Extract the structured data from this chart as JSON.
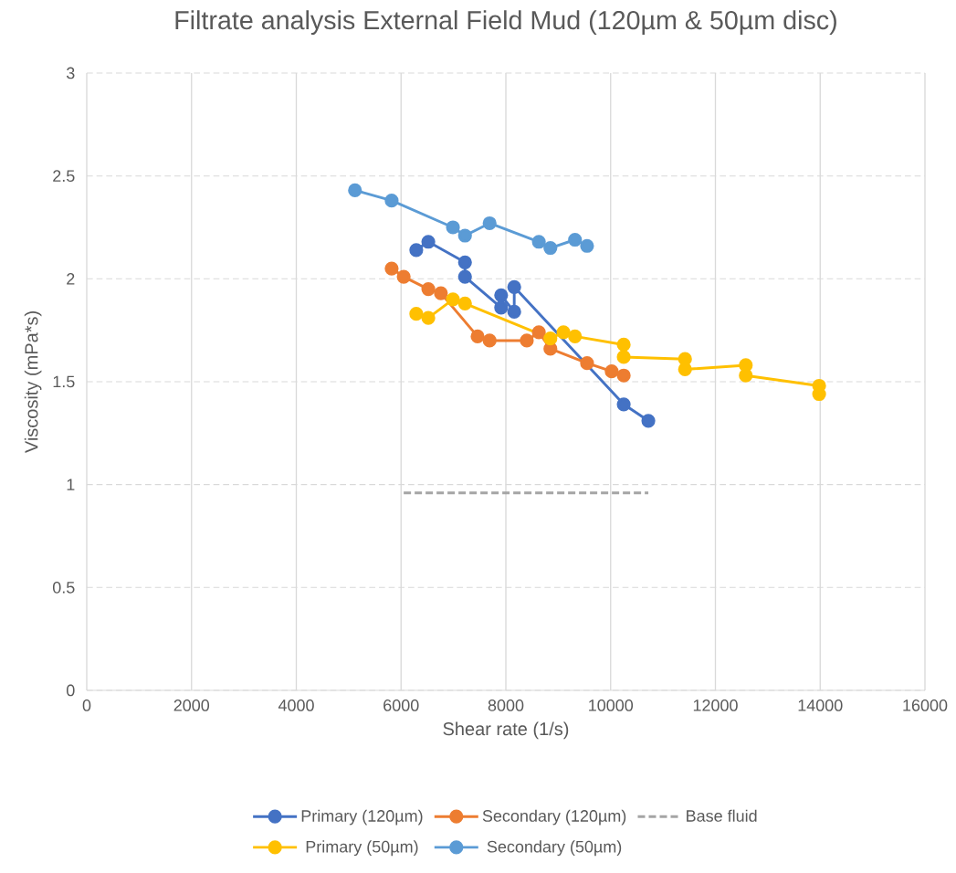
{
  "chart_data": {
    "type": "line",
    "title": "Filtrate analysis External Field Mud (120µm & 50µm disc)",
    "xlabel": "Shear rate (1/s)",
    "ylabel": "Viscosity (mPa*s)",
    "xlim": [
      0,
      16000
    ],
    "xticks": [
      0,
      2000,
      4000,
      6000,
      8000,
      10000,
      12000,
      14000,
      16000
    ],
    "ylim": [
      0,
      3
    ],
    "yticks": [
      0,
      0.5,
      1,
      1.5,
      2,
      2.5,
      3
    ],
    "grid": true,
    "legend": "bottom",
    "marker": "circle",
    "line_style": "solid",
    "series": [
      {
        "name": "Primary (120µm)",
        "color": "#4472c4",
        "x": [
          6290,
          6520,
          7220,
          7220,
          7910,
          7910,
          8160,
          8160,
          10250,
          10720
        ],
        "values": [
          2.14,
          2.18,
          2.08,
          2.01,
          1.86,
          1.92,
          1.84,
          1.96,
          1.39,
          1.31
        ]
      },
      {
        "name": "Secondary (120µm)",
        "color": "#ed7d31",
        "x": [
          5820,
          6050,
          6520,
          6760,
          7460,
          7690,
          8400,
          8630,
          8850,
          9550,
          10020,
          10250
        ],
        "values": [
          2.05,
          2.01,
          1.95,
          1.93,
          1.72,
          1.7,
          1.7,
          1.74,
          1.66,
          1.59,
          1.55,
          1.53
        ]
      },
      {
        "name": "Base fluid",
        "color": "#a5a5a5",
        "marker": "none",
        "line_style": "dashed",
        "x": [
          6050,
          10720
        ],
        "values": [
          0.96,
          0.96
        ]
      },
      {
        "name": "Primary (50µm)",
        "color": "#ffc000",
        "x": [
          6290,
          6520,
          6990,
          7220,
          8850,
          9100,
          9320,
          10250,
          10250,
          11420,
          11420,
          12580,
          12580,
          13980,
          13980
        ],
        "values": [
          1.83,
          1.81,
          1.9,
          1.88,
          1.71,
          1.74,
          1.72,
          1.68,
          1.62,
          1.61,
          1.56,
          1.58,
          1.53,
          1.48,
          1.44
        ]
      },
      {
        "name": "Secondary (50µm)",
        "color": "#5b9bd5",
        "x": [
          5120,
          5820,
          6990,
          7220,
          7690,
          8630,
          8850,
          9320,
          9550
        ],
        "values": [
          2.43,
          2.38,
          2.25,
          2.21,
          2.27,
          2.18,
          2.15,
          2.19,
          2.16
        ]
      }
    ]
  }
}
